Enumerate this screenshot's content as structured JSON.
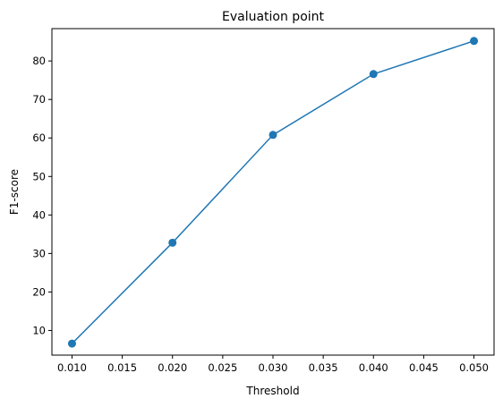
{
  "chart_data": {
    "type": "line",
    "title": "Evaluation point",
    "xlabel": "Threshold",
    "ylabel": "F1-score",
    "xlim": [
      0.008,
      0.052
    ],
    "ylim": [
      3.6,
      88.4
    ],
    "x_ticks": [
      "0.010",
      "0.015",
      "0.020",
      "0.025",
      "0.030",
      "0.035",
      "0.040",
      "0.045",
      "0.050"
    ],
    "y_ticks": [
      "10",
      "20",
      "30",
      "40",
      "50",
      "60",
      "70",
      "80"
    ],
    "grid": false,
    "marker": "circle",
    "color": "#1f77b4",
    "series": [
      {
        "x": [
          0.01,
          0.02,
          0.03,
          0.04,
          0.05
        ],
        "values": [
          6.6,
          32.8,
          60.8,
          76.6,
          85.2
        ]
      }
    ]
  }
}
